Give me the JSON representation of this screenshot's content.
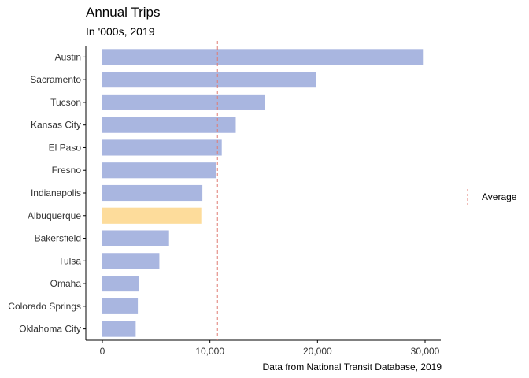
{
  "chart_data": {
    "type": "bar",
    "orientation": "horizontal",
    "title": "Annual Trips",
    "subtitle": "In '000s, 2019",
    "caption": "Data from National Transit Database, 2019",
    "categories": [
      "Austin",
      "Sacramento",
      "Tucson",
      "Kansas City",
      "El Paso",
      "Fresno",
      "Indianapolis",
      "Albuquerque",
      "Bakersfield",
      "Tulsa",
      "Omaha",
      "Colorado Springs",
      "Oklahoma City"
    ],
    "values": [
      29800,
      19900,
      15100,
      12400,
      11100,
      10600,
      9300,
      9200,
      6200,
      5300,
      3400,
      3300,
      3100
    ],
    "highlight": "Albuquerque",
    "xlim": [
      0,
      31000
    ],
    "xticks": [
      0,
      10000,
      20000,
      30000
    ],
    "xtick_labels": [
      "0",
      "10,000",
      "20,000",
      "30,000"
    ],
    "reference_line": {
      "label": "Average",
      "value": 10700,
      "style": "dashed"
    },
    "legend": {
      "position": "right",
      "entries": [
        "Average"
      ]
    },
    "grid": false,
    "colors": {
      "bar": "#a9b6e0",
      "highlight": "#fddc9b",
      "reference_line": "#e07b72",
      "axis": "#000000"
    }
  }
}
